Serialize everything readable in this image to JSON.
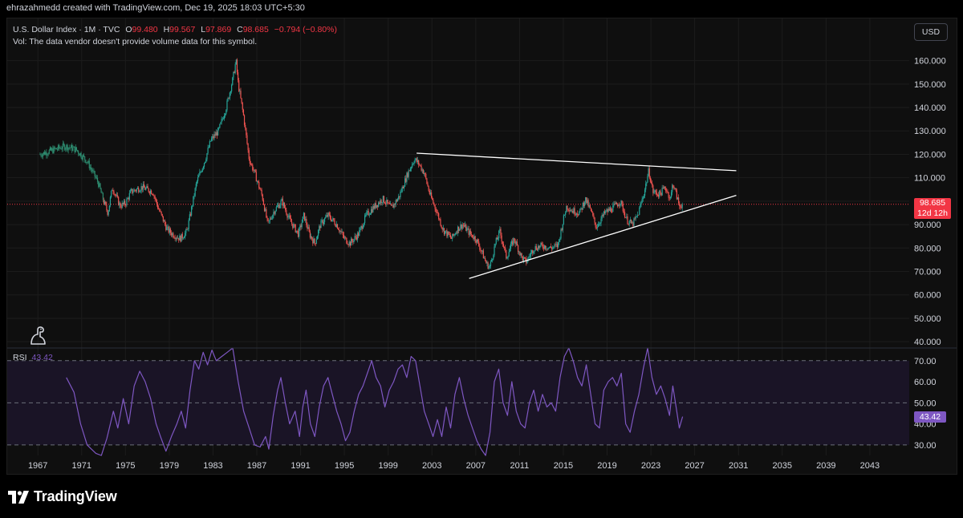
{
  "header": {
    "text": "ehrazahmedd created with TradingView.com, Dec 19, 2025 18:03 UTC+5:30"
  },
  "legend": {
    "symbol": "U.S. Dollar Index · 1M · TVC",
    "o_label": "O",
    "o": "99.480",
    "h_label": "H",
    "h": "99.567",
    "l_label": "L",
    "l": "97.869",
    "c_label": "C",
    "c": "98.685",
    "chg": "−0.794 (−0.80%)"
  },
  "volume_note": "Vol: The data vendor doesn't provide volume data for this symbol.",
  "currency": "USD",
  "price_badge": {
    "price": "98.685",
    "countdown": "12d 12h"
  },
  "rsi": {
    "label": "RSI",
    "value": "43.42"
  },
  "branding": {
    "name": "TradingView"
  },
  "colors": {
    "up": "#26a69a",
    "down": "#ef5350",
    "rsi": "#7e57c2",
    "trendline": "#ffffff",
    "last_price": "#f23645",
    "background": "#0f0f0f"
  },
  "icons": {
    "indicator": "dinosaur-icon",
    "logo": "tradingview-logo-icon"
  },
  "chart_data": [
    {
      "type": "candlestick",
      "interval": "1M",
      "y_ticks": [
        "160.000",
        "150.000",
        "140.000",
        "130.000",
        "120.000",
        "110.000",
        "100.000",
        "90.000",
        "80.000",
        "70.000",
        "60.000",
        "50.000",
        "40.000"
      ],
      "ylim": [
        38,
        165
      ],
      "x_ticks": [
        "1967",
        "1971",
        "1975",
        "1979",
        "1983",
        "1987",
        "1991",
        "1995",
        "1999",
        "2003",
        "2007",
        "2011",
        "2015",
        "2019",
        "2023",
        "2027",
        "2031",
        "2035",
        "2039",
        "2043"
      ],
      "xlim": [
        1964.2,
        2046.6
      ],
      "last_price": 98.685,
      "series_path": [
        [
          1967.2,
          120
        ],
        [
          1968.5,
          122
        ],
        [
          1969.5,
          123.5
        ],
        [
          1970.5,
          122
        ],
        [
          1971.5,
          117
        ],
        [
          1972.5,
          108
        ],
        [
          1973.0,
          100
        ],
        [
          1973.4,
          95
        ],
        [
          1973.8,
          106
        ],
        [
          1974.5,
          98
        ],
        [
          1975.0,
          99
        ],
        [
          1975.5,
          104
        ],
        [
          1976.5,
          106
        ],
        [
          1977.5,
          104
        ],
        [
          1978.0,
          97
        ],
        [
          1978.8,
          88
        ],
        [
          1979.3,
          86
        ],
        [
          1980.0,
          84
        ],
        [
          1980.6,
          87
        ],
        [
          1981.0,
          96
        ],
        [
          1981.5,
          108
        ],
        [
          1982.3,
          118
        ],
        [
          1982.8,
          126
        ],
        [
          1983.5,
          130
        ],
        [
          1984.2,
          140
        ],
        [
          1984.8,
          152
        ],
        [
          1985.1,
          160
        ],
        [
          1985.3,
          150
        ],
        [
          1985.8,
          136
        ],
        [
          1986.3,
          118
        ],
        [
          1986.8,
          112
        ],
        [
          1987.5,
          102
        ],
        [
          1988.0,
          90
        ],
        [
          1988.6,
          96
        ],
        [
          1989.3,
          100
        ],
        [
          1990.0,
          92
        ],
        [
          1990.8,
          86
        ],
        [
          1991.3,
          94
        ],
        [
          1991.8,
          86
        ],
        [
          1992.3,
          82
        ],
        [
          1992.8,
          90
        ],
        [
          1993.5,
          94
        ],
        [
          1994.3,
          90
        ],
        [
          1995.0,
          84
        ],
        [
          1995.5,
          82
        ],
        [
          1996.3,
          86
        ],
        [
          1997.0,
          94
        ],
        [
          1997.8,
          98
        ],
        [
          1998.5,
          101
        ],
        [
          1999.3,
          97
        ],
        [
          2000.0,
          102
        ],
        [
          2000.8,
          112
        ],
        [
          2001.4,
          118
        ],
        [
          2001.8,
          116
        ],
        [
          2002.3,
          112
        ],
        [
          2002.8,
          103
        ],
        [
          2003.4,
          96
        ],
        [
          2004.0,
          88
        ],
        [
          2004.8,
          84
        ],
        [
          2005.3,
          88
        ],
        [
          2005.8,
          90
        ],
        [
          2006.5,
          86
        ],
        [
          2007.0,
          84
        ],
        [
          2007.5,
          79
        ],
        [
          2008.0,
          73
        ],
        [
          2008.3,
          72
        ],
        [
          2008.8,
          82
        ],
        [
          2009.2,
          87
        ],
        [
          2009.8,
          76
        ],
        [
          2010.5,
          84
        ],
        [
          2011.2,
          76
        ],
        [
          2011.6,
          74
        ],
        [
          2012.3,
          80
        ],
        [
          2013.2,
          81
        ],
        [
          2013.8,
          80
        ],
        [
          2014.5,
          81
        ],
        [
          2015.0,
          92
        ],
        [
          2015.3,
          98
        ],
        [
          2015.8,
          96
        ],
        [
          2016.5,
          95
        ],
        [
          2017.0,
          101
        ],
        [
          2017.5,
          96
        ],
        [
          2018.0,
          89
        ],
        [
          2018.8,
          95
        ],
        [
          2019.5,
          97
        ],
        [
          2020.2,
          100
        ],
        [
          2020.8,
          92
        ],
        [
          2021.3,
          90
        ],
        [
          2021.8,
          94
        ],
        [
          2022.4,
          104
        ],
        [
          2022.8,
          113
        ],
        [
          2023.2,
          104
        ],
        [
          2023.8,
          103
        ],
        [
          2024.3,
          106
        ],
        [
          2024.8,
          101
        ],
        [
          2025.0,
          108
        ],
        [
          2025.3,
          103
        ],
        [
          2025.6,
          98
        ],
        [
          2025.9,
          98.685
        ]
      ]
    },
    {
      "type": "line",
      "name": "RSI",
      "y_ticks": [
        "70.00",
        "60.00",
        "50.00",
        "40.00",
        "30.00"
      ],
      "ylim": [
        25,
        76
      ],
      "bands": [
        30,
        50,
        70
      ],
      "values": [
        [
          1969.6,
          62
        ],
        [
          1970.3,
          55
        ],
        [
          1970.9,
          40
        ],
        [
          1971.5,
          30
        ],
        [
          1972.3,
          26
        ],
        [
          1972.8,
          25
        ],
        [
          1973.3,
          33
        ],
        [
          1973.9,
          46
        ],
        [
          1974.3,
          38
        ],
        [
          1974.8,
          52
        ],
        [
          1975.3,
          40
        ],
        [
          1975.8,
          58
        ],
        [
          1976.3,
          65
        ],
        [
          1976.8,
          60
        ],
        [
          1977.3,
          52
        ],
        [
          1977.8,
          40
        ],
        [
          1978.2,
          34
        ],
        [
          1978.7,
          27
        ],
        [
          1979.2,
          34
        ],
        [
          1979.7,
          40
        ],
        [
          1980.1,
          46
        ],
        [
          1980.5,
          38
        ],
        [
          1980.9,
          56
        ],
        [
          1981.3,
          70
        ],
        [
          1981.7,
          66
        ],
        [
          1982.1,
          74
        ],
        [
          1982.5,
          68
        ],
        [
          1982.9,
          75
        ],
        [
          1983.3,
          70
        ],
        [
          1983.8,
          72
        ],
        [
          1984.3,
          74
        ],
        [
          1984.8,
          76
        ],
        [
          1985.3,
          60
        ],
        [
          1985.8,
          46
        ],
        [
          1986.3,
          38
        ],
        [
          1986.8,
          30
        ],
        [
          1987.3,
          29
        ],
        [
          1987.8,
          34
        ],
        [
          1988.1,
          28
        ],
        [
          1988.5,
          44
        ],
        [
          1988.9,
          56
        ],
        [
          1989.2,
          62
        ],
        [
          1989.6,
          50
        ],
        [
          1990.0,
          40
        ],
        [
          1990.5,
          46
        ],
        [
          1990.9,
          34
        ],
        [
          1991.2,
          48
        ],
        [
          1991.5,
          56
        ],
        [
          1991.9,
          40
        ],
        [
          1992.3,
          34
        ],
        [
          1992.7,
          48
        ],
        [
          1993.1,
          58
        ],
        [
          1993.5,
          62
        ],
        [
          1993.9,
          54
        ],
        [
          1994.3,
          46
        ],
        [
          1994.7,
          40
        ],
        [
          1995.1,
          32
        ],
        [
          1995.5,
          36
        ],
        [
          1995.9,
          46
        ],
        [
          1996.3,
          54
        ],
        [
          1996.7,
          58
        ],
        [
          1997.1,
          64
        ],
        [
          1997.5,
          70
        ],
        [
          1997.9,
          62
        ],
        [
          1998.3,
          58
        ],
        [
          1998.7,
          48
        ],
        [
          1999.1,
          56
        ],
        [
          1999.5,
          60
        ],
        [
          1999.9,
          66
        ],
        [
          2000.3,
          68
        ],
        [
          2000.7,
          62
        ],
        [
          2001.1,
          72
        ],
        [
          2001.5,
          70
        ],
        [
          2001.9,
          58
        ],
        [
          2002.3,
          46
        ],
        [
          2002.7,
          40
        ],
        [
          2003.1,
          34
        ],
        [
          2003.5,
          42
        ],
        [
          2003.9,
          34
        ],
        [
          2004.3,
          48
        ],
        [
          2004.7,
          38
        ],
        [
          2005.1,
          54
        ],
        [
          2005.5,
          62
        ],
        [
          2005.9,
          52
        ],
        [
          2006.3,
          44
        ],
        [
          2006.7,
          38
        ],
        [
          2007.1,
          32
        ],
        [
          2007.5,
          28
        ],
        [
          2007.9,
          25
        ],
        [
          2008.3,
          36
        ],
        [
          2008.7,
          60
        ],
        [
          2009.1,
          66
        ],
        [
          2009.5,
          50
        ],
        [
          2009.9,
          44
        ],
        [
          2010.3,
          60
        ],
        [
          2010.7,
          46
        ],
        [
          2011.1,
          40
        ],
        [
          2011.5,
          38
        ],
        [
          2011.9,
          50
        ],
        [
          2012.3,
          56
        ],
        [
          2012.7,
          46
        ],
        [
          2013.1,
          54
        ],
        [
          2013.5,
          48
        ],
        [
          2013.9,
          50
        ],
        [
          2014.3,
          46
        ],
        [
          2014.7,
          62
        ],
        [
          2015.1,
          72
        ],
        [
          2015.5,
          76
        ],
        [
          2015.9,
          70
        ],
        [
          2016.3,
          62
        ],
        [
          2016.7,
          58
        ],
        [
          2017.1,
          68
        ],
        [
          2017.5,
          54
        ],
        [
          2017.9,
          40
        ],
        [
          2018.3,
          38
        ],
        [
          2018.7,
          56
        ],
        [
          2019.1,
          60
        ],
        [
          2019.5,
          62
        ],
        [
          2019.9,
          58
        ],
        [
          2020.3,
          64
        ],
        [
          2020.7,
          40
        ],
        [
          2021.1,
          36
        ],
        [
          2021.5,
          46
        ],
        [
          2021.9,
          54
        ],
        [
          2022.3,
          66
        ],
        [
          2022.7,
          76
        ],
        [
          2023.1,
          62
        ],
        [
          2023.5,
          54
        ],
        [
          2023.9,
          58
        ],
        [
          2024.3,
          52
        ],
        [
          2024.7,
          44
        ],
        [
          2025.0,
          58
        ],
        [
          2025.3,
          48
        ],
        [
          2025.6,
          38
        ],
        [
          2025.9,
          43.42
        ]
      ]
    }
  ]
}
